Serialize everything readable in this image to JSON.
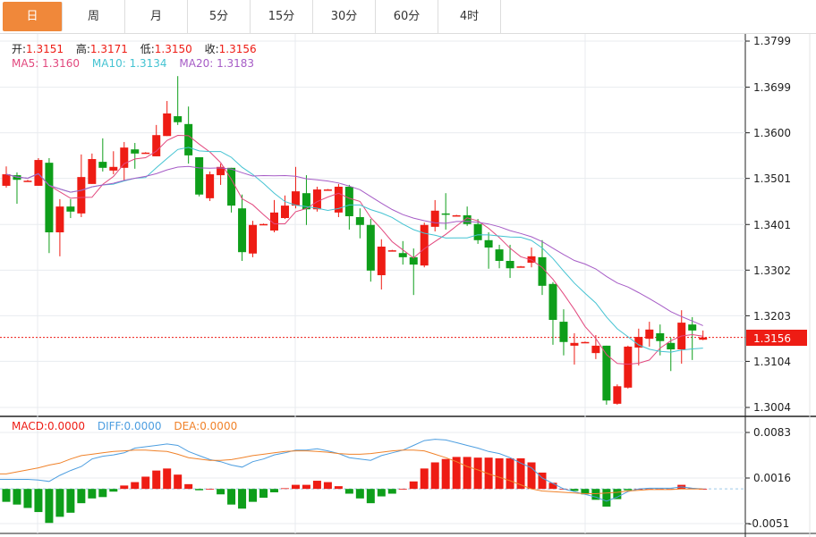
{
  "tabs": [
    {
      "label": "日",
      "active": true
    },
    {
      "label": "周"
    },
    {
      "label": "月"
    },
    {
      "label": "5分"
    },
    {
      "label": "15分"
    },
    {
      "label": "30分"
    },
    {
      "label": "60分"
    },
    {
      "label": "4时"
    }
  ],
  "ohlc_legend": {
    "open_label": "开:",
    "open": "1.3151",
    "high_label": "高:",
    "high": "1.3171",
    "low_label": "低:",
    "low": "1.3150",
    "close_label": "收:",
    "close": "1.3156"
  },
  "ma_legend": {
    "ma5": "MA5: 1.3160",
    "ma10": "MA10: 1.3134",
    "ma20": "MA20: 1.3183"
  },
  "macd_legend": {
    "macd": "MACD:0.0000",
    "diff": "DIFF:0.0000",
    "dea": "DEA:0.0000"
  },
  "current_price": "1.3156",
  "colors": {
    "up": "#ee1c14",
    "down": "#0e9e1a",
    "ma5": "#e2487e",
    "ma10": "#44c3d2",
    "ma20": "#a65cc6",
    "diff": "#4d9ee0",
    "dea": "#f0822a",
    "active_tab": "#f0883a"
  },
  "chart_data": [
    {
      "type": "candlestick",
      "price_axis": {
        "ticks": [
          "1.3799",
          "1.3699",
          "1.3600",
          "1.3501",
          "1.3401",
          "1.3302",
          "1.3203",
          "1.3104",
          "1.3004"
        ],
        "ylim": [
          1.3004,
          1.3799
        ]
      },
      "moving_averages": [
        5,
        10,
        20
      ],
      "ohlc": [
        [
          1.3485,
          1.3527,
          1.3481,
          1.351
        ],
        [
          1.3508,
          1.3514,
          1.3446,
          1.3498
        ],
        [
          1.3496,
          1.3498,
          1.3495,
          1.3496
        ],
        [
          1.3485,
          1.3545,
          1.3485,
          1.3541
        ],
        [
          1.3535,
          1.3545,
          1.3339,
          1.3384
        ],
        [
          1.3384,
          1.3456,
          1.3332,
          1.344
        ],
        [
          1.344,
          1.3456,
          1.3415,
          1.3429
        ],
        [
          1.3425,
          1.3553,
          1.3417,
          1.3504
        ],
        [
          1.3489,
          1.3555,
          1.3489,
          1.3543
        ],
        [
          1.3537,
          1.3588,
          1.3516,
          1.3524
        ],
        [
          1.3518,
          1.356,
          1.351,
          1.3526
        ],
        [
          1.3524,
          1.358,
          1.3495,
          1.3568
        ],
        [
          1.3564,
          1.3578,
          1.3522,
          1.3555
        ],
        [
          1.3557,
          1.3558,
          1.3556,
          1.3557
        ],
        [
          1.3549,
          1.3617,
          1.3549,
          1.3595
        ],
        [
          1.3593,
          1.3669,
          1.3593,
          1.3642
        ],
        [
          1.3636,
          1.3723,
          1.3617,
          1.3623
        ],
        [
          1.3619,
          1.3657,
          1.3533,
          1.3551
        ],
        [
          1.3547,
          1.3547,
          1.3462,
          1.3466
        ],
        [
          1.3458,
          1.3516,
          1.3452,
          1.351
        ],
        [
          1.3508,
          1.3533,
          1.3487,
          1.3526
        ],
        [
          1.3524,
          1.3524,
          1.3427,
          1.3442
        ],
        [
          1.3436,
          1.3466,
          1.3322,
          1.3341
        ],
        [
          1.3338,
          1.3409,
          1.333,
          1.34
        ],
        [
          1.3402,
          1.3403,
          1.3401,
          1.3402
        ],
        [
          1.3388,
          1.3454,
          1.3384,
          1.3427
        ],
        [
          1.3415,
          1.3464,
          1.3413,
          1.3442
        ],
        [
          1.3442,
          1.3526,
          1.3436,
          1.3473
        ],
        [
          1.3469,
          1.3508,
          1.34,
          1.3434
        ],
        [
          1.3434,
          1.3483,
          1.3429,
          1.3477
        ],
        [
          1.3477,
          1.3478,
          1.3476,
          1.3477
        ],
        [
          1.3427,
          1.3489,
          1.3417,
          1.3483
        ],
        [
          1.3483,
          1.3487,
          1.339,
          1.3419
        ],
        [
          1.3417,
          1.3436,
          1.3371,
          1.34
        ],
        [
          1.34,
          1.3413,
          1.3277,
          1.3301
        ],
        [
          1.3291,
          1.3369,
          1.326,
          1.3353
        ],
        [
          1.3345,
          1.3346,
          1.3344,
          1.3345
        ],
        [
          1.3339,
          1.3365,
          1.3314,
          1.333
        ],
        [
          1.333,
          1.3349,
          1.3248,
          1.3314
        ],
        [
          1.3312,
          1.3405,
          1.3308,
          1.34
        ],
        [
          1.3396,
          1.3454,
          1.3386,
          1.3431
        ],
        [
          1.3425,
          1.3469,
          1.339,
          1.3423
        ],
        [
          1.3421,
          1.3422,
          1.342,
          1.3421
        ],
        [
          1.3421,
          1.344,
          1.3398,
          1.3402
        ],
        [
          1.3402,
          1.3413,
          1.3359,
          1.3367
        ],
        [
          1.3367,
          1.3384,
          1.3305,
          1.3351
        ],
        [
          1.3347,
          1.3357,
          1.3306,
          1.3322
        ],
        [
          1.3322,
          1.3357,
          1.3285,
          1.3306
        ],
        [
          1.331,
          1.3311,
          1.3309,
          1.331
        ],
        [
          1.3318,
          1.3351,
          1.3308,
          1.3332
        ],
        [
          1.333,
          1.3367,
          1.3248,
          1.3268
        ],
        [
          1.3272,
          1.3276,
          1.314,
          1.3194
        ],
        [
          1.319,
          1.3217,
          1.3117,
          1.3146
        ],
        [
          1.3138,
          1.3165,
          1.3097,
          1.3144
        ],
        [
          1.3146,
          1.3147,
          1.3145,
          1.3146
        ],
        [
          1.3122,
          1.3161,
          1.3109,
          1.3138
        ],
        [
          1.3138,
          1.3138,
          1.301,
          1.3019
        ],
        [
          1.3012,
          1.3054,
          1.301,
          1.305
        ],
        [
          1.3047,
          1.3138,
          1.3045,
          1.3136
        ],
        [
          1.3134,
          1.3175,
          1.3095,
          1.3157
        ],
        [
          1.3153,
          1.319,
          1.3136,
          1.3173
        ],
        [
          1.3165,
          1.3184,
          1.3117,
          1.3148
        ],
        [
          1.3144,
          1.3155,
          1.3083,
          1.313
        ],
        [
          1.313,
          1.3215,
          1.3099,
          1.3188
        ],
        [
          1.3184,
          1.32,
          1.3107,
          1.3171
        ],
        [
          1.3151,
          1.3171,
          1.315,
          1.3156
        ]
      ]
    },
    {
      "type": "bar",
      "name": "MACD",
      "value_axis": {
        "ticks": [
          "0.0083",
          "0.0016",
          "-0.0051"
        ],
        "ylim": [
          -0.0051,
          0.0083
        ]
      },
      "macd": [
        -0.0019,
        -0.0023,
        -0.0028,
        -0.0034,
        -0.005,
        -0.0041,
        -0.0035,
        -0.0021,
        -0.0014,
        -0.0012,
        -0.0004,
        0.0005,
        0.001,
        0.0018,
        0.0027,
        0.003,
        0.0021,
        0.0007,
        -0.0002,
        0.0,
        -0.0008,
        -0.0023,
        -0.0029,
        -0.0019,
        -0.0013,
        -0.0005,
        0.0001,
        0.0006,
        0.0006,
        0.0012,
        0.001,
        0.0004,
        -0.0007,
        -0.0014,
        -0.0021,
        -0.0011,
        -0.0007,
        0.0,
        0.0011,
        0.003,
        0.0039,
        0.0044,
        0.0047,
        0.0047,
        0.0046,
        0.0046,
        0.0045,
        0.0045,
        0.0045,
        0.0039,
        0.0024,
        0.0009,
        0.0,
        -0.0003,
        -0.0008,
        -0.0016,
        -0.0026,
        -0.0015,
        -0.0002,
        0.0,
        0.0,
        0.0,
        0.0,
        0.0006,
        0.0001,
        0.0
      ],
      "diff": [
        0.0014,
        0.0014,
        0.0014,
        0.0013,
        0.0011,
        0.002,
        0.0027,
        0.0033,
        0.0044,
        0.0048,
        0.005,
        0.0053,
        0.006,
        0.0062,
        0.0064,
        0.0066,
        0.0064,
        0.0055,
        0.0049,
        0.0043,
        0.004,
        0.0035,
        0.0032,
        0.004,
        0.0044,
        0.005,
        0.0053,
        0.0057,
        0.0057,
        0.0059,
        0.0056,
        0.0052,
        0.0046,
        0.0044,
        0.0042,
        0.0049,
        0.0053,
        0.0057,
        0.0064,
        0.0071,
        0.0073,
        0.0072,
        0.0068,
        0.0064,
        0.006,
        0.0055,
        0.0052,
        0.0046,
        0.0038,
        0.0031,
        0.0016,
        0.0008,
        0.0,
        -0.0004,
        -0.0008,
        -0.0012,
        -0.0018,
        -0.0012,
        -0.0004,
        0.0,
        0.0001,
        0.0001,
        0.0001,
        0.0003,
        0.0001,
        0.0
      ],
      "dea": [
        0.0022,
        0.0025,
        0.0028,
        0.0031,
        0.0035,
        0.0038,
        0.0044,
        0.0049,
        0.0051,
        0.0053,
        0.0055,
        0.0056,
        0.0057,
        0.0057,
        0.0056,
        0.0055,
        0.0051,
        0.0046,
        0.0044,
        0.0042,
        0.0042,
        0.0043,
        0.0046,
        0.0049,
        0.0051,
        0.0053,
        0.0055,
        0.0056,
        0.0056,
        0.0055,
        0.0054,
        0.0052,
        0.0051,
        0.0051,
        0.0052,
        0.0054,
        0.0056,
        0.0057,
        0.0057,
        0.0056,
        0.0051,
        0.0046,
        0.004,
        0.0033,
        0.0028,
        0.0022,
        0.0017,
        0.0012,
        0.0006,
        0.0,
        -0.0003,
        -0.0004,
        -0.0005,
        -0.0006,
        -0.0007,
        -0.0007,
        -0.0006,
        -0.0005,
        -0.0003,
        -0.0002,
        -0.0001,
        -0.0001,
        -0.0001,
        0.0,
        0.0,
        0.0
      ]
    }
  ]
}
